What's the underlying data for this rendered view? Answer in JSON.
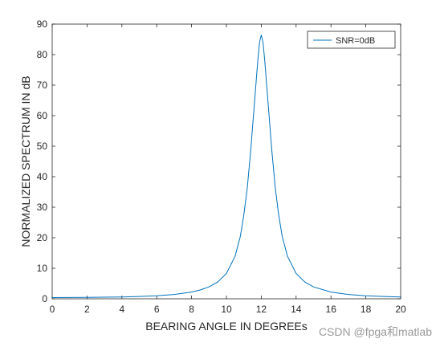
{
  "chart_data": {
    "type": "line",
    "title": "",
    "xlabel": "BEARING ANGLE IN DEGREEs",
    "ylabel": "NORMALIZED SPECTRUM IN dB",
    "xlim": [
      0,
      20
    ],
    "ylim": [
      0,
      90
    ],
    "xticks": [
      0,
      2,
      4,
      6,
      8,
      10,
      12,
      14,
      16,
      18,
      20
    ],
    "yticks": [
      0,
      10,
      20,
      30,
      40,
      50,
      60,
      70,
      80,
      90
    ],
    "grid": false,
    "legend_position": "top-right",
    "series": [
      {
        "name": "SNR=0dB",
        "color": "#0072bd",
        "x": [
          0,
          2,
          4,
          5,
          6,
          7,
          8,
          8.5,
          9,
          9.5,
          10,
          10.5,
          10.8,
          11,
          11.2,
          11.4,
          11.6,
          11.8,
          11.9,
          12,
          12.1,
          12.2,
          12.4,
          12.6,
          12.8,
          13,
          13.2,
          13.5,
          14,
          14.5,
          15,
          16,
          17,
          18,
          19,
          20
        ],
        "y": [
          0.4,
          0.45,
          0.6,
          0.75,
          1.0,
          1.4,
          2.2,
          2.9,
          3.9,
          5.5,
          8.3,
          14.0,
          20.5,
          27.5,
          36.5,
          49.0,
          63.5,
          78.0,
          84.0,
          86.5,
          84.0,
          78.0,
          63.5,
          49.0,
          36.5,
          27.5,
          20.5,
          14.0,
          8.3,
          5.5,
          3.9,
          2.2,
          1.4,
          1.0,
          0.75,
          0.6
        ]
      }
    ]
  },
  "watermark": "CSDN @fpga和matlab"
}
